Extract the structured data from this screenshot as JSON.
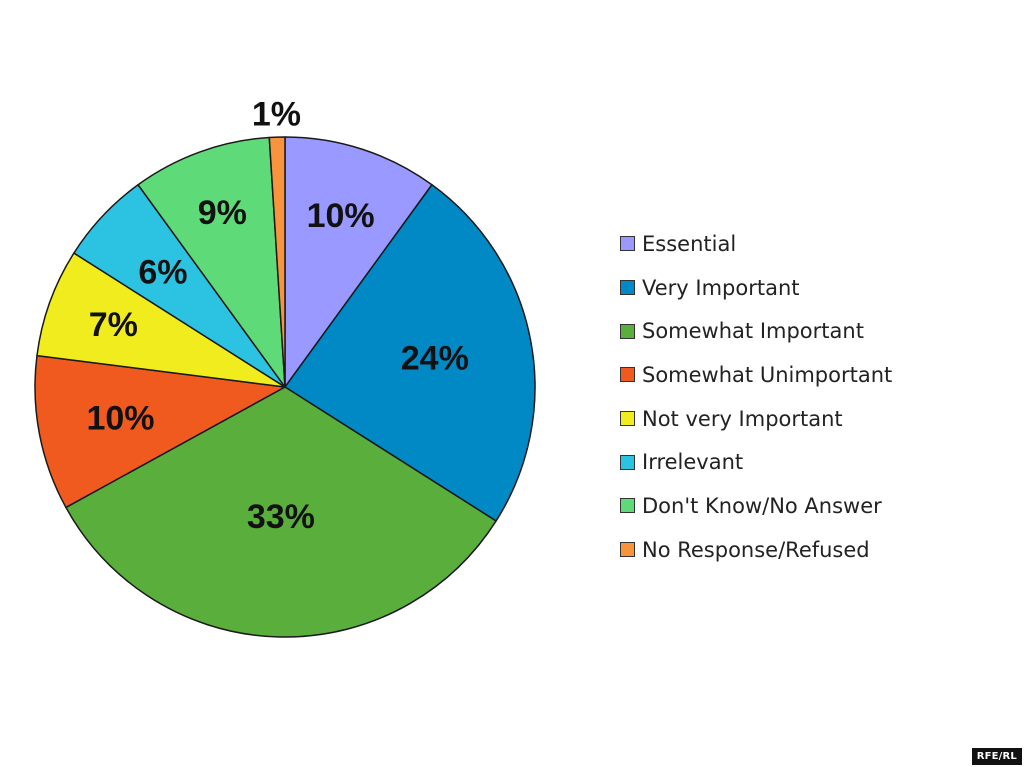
{
  "chart_data": {
    "type": "pie",
    "start_angle": "12 o'clock",
    "direction": "clockwise",
    "legend_position": "right",
    "slices": [
      {
        "name": "Essential",
        "value": 10,
        "label": "10%",
        "color": "#9999FF"
      },
      {
        "name": "Very Important",
        "value": 24,
        "label": "24%",
        "color": "#0089C4"
      },
      {
        "name": "Somewhat Important",
        "value": 33,
        "label": "33%",
        "color": "#5AAF3C"
      },
      {
        "name": "Somewhat Unimportant",
        "value": 10,
        "label": "10%",
        "color": "#F15A1E"
      },
      {
        "name": "Not very Important",
        "value": 7,
        "label": "7%",
        "color": "#F0EC1E"
      },
      {
        "name": "Irrelevant",
        "value": 6,
        "label": "6%",
        "color": "#2CC3E3"
      },
      {
        "name": "Don't Know/No Answer",
        "value": 9,
        "label": "9%",
        "color": "#5EDB78"
      },
      {
        "name": "No Response/Refused",
        "value": 1,
        "label": "1%",
        "color": "#F7943D"
      }
    ]
  },
  "watermark": "RFE/RL"
}
